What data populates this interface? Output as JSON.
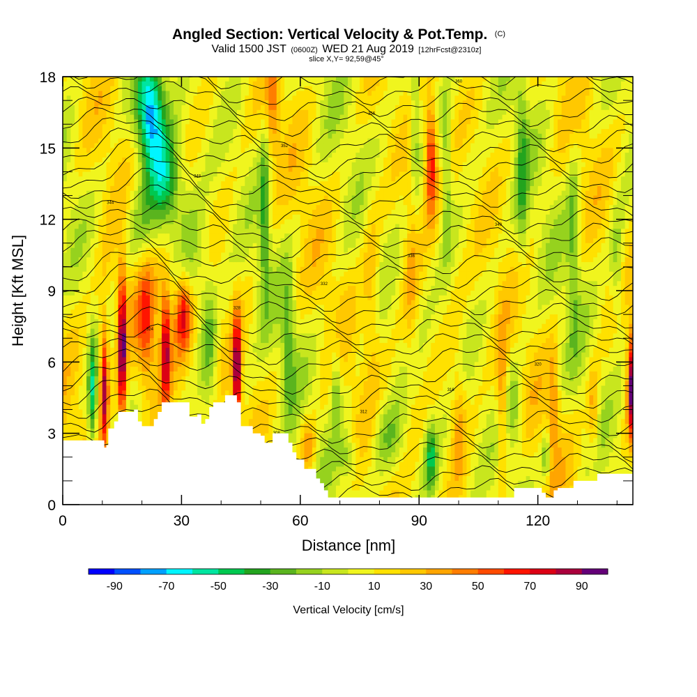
{
  "title": "Angled Section: Vertical Velocity & Pot.Temp.",
  "title_suffix": "(C)",
  "subtitle": {
    "valid": "Valid 1500 JST",
    "z": "(0600Z)",
    "date": "WED 21 Aug 2019",
    "fcst": "[12hrFcst@2310z]"
  },
  "slice_text": "slice X,Y= 92,59@45°",
  "chart_data": {
    "type": "heatmap",
    "xlabel": "Distance [nm]",
    "ylabel": "Height [Kft MSL]",
    "xlim": [
      0,
      144
    ],
    "ylim": [
      0,
      18
    ],
    "x_ticks": [
      0,
      30,
      60,
      90,
      120
    ],
    "y_ticks": [
      0,
      3,
      6,
      9,
      12,
      15,
      18
    ],
    "colorbar": {
      "label": "Vertical Velocity [cm/s]",
      "tick_labels": [
        -90,
        -70,
        -50,
        -30,
        -10,
        10,
        30,
        50,
        70,
        90
      ],
      "bins": [
        -100,
        -90,
        -80,
        -70,
        -60,
        -50,
        -40,
        -30,
        -20,
        -10,
        0,
        10,
        20,
        30,
        40,
        50,
        60,
        70,
        80,
        90,
        100
      ],
      "colors": [
        "#0000ff",
        "#0050ff",
        "#00a0ff",
        "#00f5ff",
        "#00e5a0",
        "#00c850",
        "#23a41e",
        "#5ab41e",
        "#96d21e",
        "#c8e61e",
        "#f0f51e",
        "#ffe100",
        "#ffc800",
        "#ffa500",
        "#ff7d00",
        "#ff4b00",
        "#ff1400",
        "#dc0014",
        "#aa003c",
        "#640078"
      ]
    },
    "theta_contours": {
      "levels_K": [
        300,
        302,
        304,
        306,
        308,
        310,
        312,
        314,
        316,
        318,
        320,
        322,
        324,
        326,
        328,
        330,
        332,
        334,
        336,
        338,
        340,
        342,
        344,
        346,
        348,
        350,
        352,
        354,
        356,
        358,
        360,
        362
      ]
    },
    "terrain_kft": [
      [
        0,
        2.7
      ],
      [
        10,
        2.7
      ],
      [
        10.5,
        2.4
      ],
      [
        11,
        2.5
      ],
      [
        11.5,
        3.2
      ],
      [
        13,
        3.5
      ],
      [
        14,
        3.9
      ],
      [
        18,
        4.0
      ],
      [
        19,
        3.5
      ],
      [
        20,
        3.3
      ],
      [
        22,
        3.3
      ],
      [
        23,
        3.6
      ],
      [
        24,
        3.9
      ],
      [
        25,
        4.3
      ],
      [
        31,
        4.3
      ],
      [
        32,
        3.7
      ],
      [
        34,
        3.8
      ],
      [
        35,
        3.4
      ],
      [
        36,
        3.6
      ],
      [
        37,
        4.1
      ],
      [
        38,
        4.3
      ],
      [
        40,
        4.3
      ],
      [
        41,
        4.6
      ],
      [
        43,
        4.6
      ],
      [
        44,
        4.3
      ],
      [
        45,
        3.3
      ],
      [
        47,
        3.3
      ],
      [
        48,
        3.0
      ],
      [
        50,
        2.9
      ],
      [
        51,
        2.6
      ],
      [
        53,
        3.0
      ],
      [
        56,
        3.0
      ],
      [
        57,
        2.6
      ],
      [
        58,
        2.2
      ],
      [
        59,
        1.9
      ],
      [
        60,
        1.9
      ],
      [
        61,
        1.5
      ],
      [
        63,
        1.5
      ],
      [
        64,
        1.1
      ],
      [
        65,
        0.9
      ],
      [
        66,
        0.6
      ],
      [
        67,
        0.3
      ],
      [
        114,
        0.3
      ],
      [
        114,
        0.7
      ],
      [
        121,
        0.7
      ],
      [
        121,
        0.5
      ],
      [
        122,
        0.3
      ],
      [
        123,
        0.3
      ],
      [
        124,
        0.6
      ],
      [
        125,
        0.7
      ],
      [
        128,
        0.7
      ],
      [
        129,
        1.0
      ],
      [
        134,
        1.0
      ],
      [
        135,
        1.3
      ],
      [
        140,
        1.3
      ],
      [
        144,
        1.3
      ]
    ],
    "features": [
      {
        "sign": "down",
        "x": 22,
        "z": 16.5,
        "peak_cms": -80
      },
      {
        "sign": "down",
        "x": 26,
        "z": 13.5,
        "peak_cms": -55
      },
      {
        "sign": "down",
        "x": 7.5,
        "z": 4.5,
        "peak_cms": -45
      },
      {
        "sign": "up",
        "x": 15,
        "z": 6.5,
        "peak_cms": 85
      },
      {
        "sign": "up",
        "x": 10.5,
        "z": 5.0,
        "peak_cms": 75
      },
      {
        "sign": "up",
        "x": 26,
        "z": 6.5,
        "peak_cms": 65
      },
      {
        "sign": "up",
        "x": 30.5,
        "z": 8.0,
        "peak_cms": 55
      },
      {
        "sign": "up",
        "x": 44,
        "z": 5.5,
        "peak_cms": 85
      },
      {
        "sign": "up",
        "x": 93,
        "z": 14.5,
        "peak_cms": 65
      },
      {
        "sign": "up",
        "x": 144,
        "z": 5.0,
        "peak_cms": 95
      },
      {
        "sign": "down",
        "x": 51,
        "z": 12.0,
        "peak_cms": -35
      },
      {
        "sign": "down",
        "x": 93,
        "z": 2.0,
        "peak_cms": -40
      },
      {
        "sign": "down",
        "x": 69,
        "z": 5.0,
        "peak_cms": -30
      }
    ]
  }
}
